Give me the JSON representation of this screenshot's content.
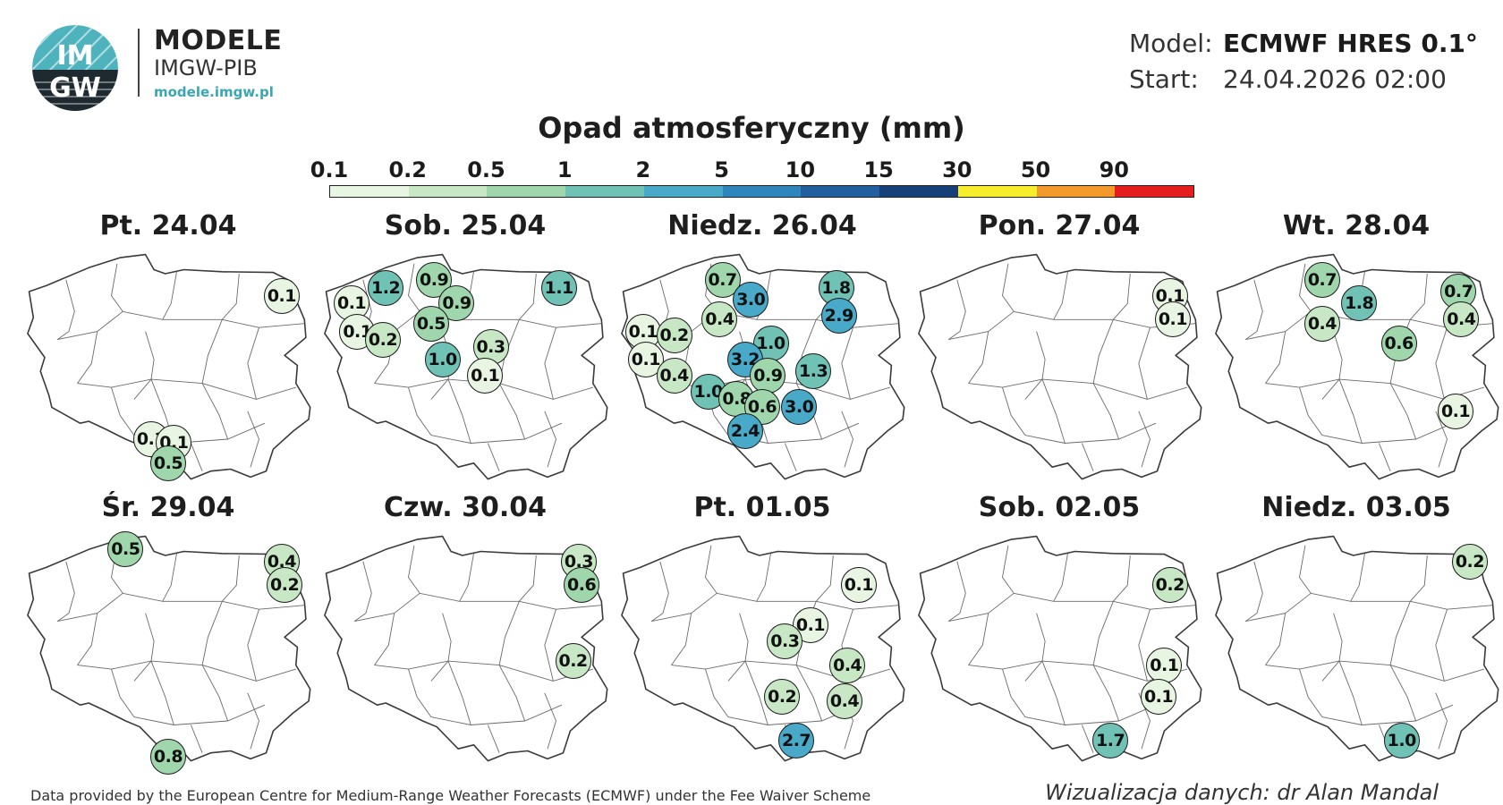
{
  "header": {
    "logo_text_top": "IM",
    "logo_text_bottom": "GW",
    "brand_name": "MODELE",
    "brand_sub": "IMGW-PIB",
    "brand_url": "modele.imgw.pl",
    "model_label": "Model:",
    "model_value": "ECMWF HRES 0.1°",
    "start_label": "Start:",
    "start_value": "24.04.2026 02:00",
    "logo_colors": {
      "teal": "#4fb3bd",
      "dark": "#1f2a30"
    }
  },
  "chart_data": {
    "type": "map",
    "title": "Opad atmosferyczny (mm)",
    "scale_ticks": [
      "0.1",
      "0.2",
      "0.5",
      "1",
      "2",
      "5",
      "10",
      "15",
      "30",
      "50",
      "90"
    ],
    "scale_thresholds": [
      0.1,
      0.2,
      0.5,
      1,
      2,
      5,
      10,
      15,
      30,
      50,
      90
    ],
    "scale_colors": [
      "#e8f5e3",
      "#c7e7c5",
      "#9fd6ac",
      "#70c2b4",
      "#48a9c8",
      "#2f86bd",
      "#215f9e",
      "#17407a",
      "#f6ee2a",
      "#f49a2c",
      "#e41e1e"
    ],
    "panels": [
      {
        "title": "Pt. 24.04",
        "values": [
          {
            "v": 0.1,
            "lon": 23.1,
            "lat": 53.8
          },
          {
            "v": 0.1,
            "lon": 18.5,
            "lat": 50.2
          },
          {
            "v": 0.1,
            "lon": 19.3,
            "lat": 50.1
          },
          {
            "v": 0.5,
            "lon": 19.1,
            "lat": 49.6
          }
        ]
      },
      {
        "title": "Sob. 25.04",
        "values": [
          {
            "v": 1.2,
            "lon": 16.3,
            "lat": 54.0
          },
          {
            "v": 0.9,
            "lon": 18.0,
            "lat": 54.2
          },
          {
            "v": 1.1,
            "lon": 22.4,
            "lat": 54.0
          },
          {
            "v": 0.1,
            "lon": 15.1,
            "lat": 53.6
          },
          {
            "v": 0.9,
            "lon": 18.8,
            "lat": 53.6
          },
          {
            "v": 0.5,
            "lon": 17.9,
            "lat": 53.1
          },
          {
            "v": 0.1,
            "lon": 15.3,
            "lat": 52.9
          },
          {
            "v": 0.2,
            "lon": 16.2,
            "lat": 52.7
          },
          {
            "v": 0.3,
            "lon": 20.0,
            "lat": 52.5
          },
          {
            "v": 1.0,
            "lon": 18.3,
            "lat": 52.2
          },
          {
            "v": 0.1,
            "lon": 19.8,
            "lat": 51.8
          }
        ]
      },
      {
        "title": "Niedz. 26.04",
        "values": [
          {
            "v": 0.7,
            "lon": 17.7,
            "lat": 54.2
          },
          {
            "v": 1.8,
            "lon": 21.7,
            "lat": 54.0
          },
          {
            "v": 3.0,
            "lon": 18.7,
            "lat": 53.7
          },
          {
            "v": 2.9,
            "lon": 21.8,
            "lat": 53.3
          },
          {
            "v": 0.4,
            "lon": 17.6,
            "lat": 53.2
          },
          {
            "v": 0.1,
            "lon": 14.9,
            "lat": 52.9
          },
          {
            "v": 0.2,
            "lon": 16.0,
            "lat": 52.8
          },
          {
            "v": 1.0,
            "lon": 19.4,
            "lat": 52.6
          },
          {
            "v": 3.2,
            "lon": 18.5,
            "lat": 52.2
          },
          {
            "v": 0.1,
            "lon": 15.0,
            "lat": 52.2
          },
          {
            "v": 0.4,
            "lon": 16.0,
            "lat": 51.8
          },
          {
            "v": 0.9,
            "lon": 19.3,
            "lat": 51.8
          },
          {
            "v": 1.3,
            "lon": 20.9,
            "lat": 51.9
          },
          {
            "v": 1.0,
            "lon": 17.2,
            "lat": 51.4
          },
          {
            "v": 0.8,
            "lon": 18.2,
            "lat": 51.2
          },
          {
            "v": 0.6,
            "lon": 19.1,
            "lat": 51.0
          },
          {
            "v": 3.0,
            "lon": 20.4,
            "lat": 51.0
          },
          {
            "v": 2.4,
            "lon": 18.5,
            "lat": 50.4
          }
        ]
      },
      {
        "title": "Pon. 27.04",
        "values": [
          {
            "v": 0.1,
            "lon": 23.0,
            "lat": 53.8
          },
          {
            "v": 0.1,
            "lon": 23.1,
            "lat": 53.2
          }
        ]
      },
      {
        "title": "Wt. 28.04",
        "values": [
          {
            "v": 0.7,
            "lon": 17.9,
            "lat": 54.2
          },
          {
            "v": 0.7,
            "lon": 22.7,
            "lat": 53.9
          },
          {
            "v": 1.8,
            "lon": 19.2,
            "lat": 53.6
          },
          {
            "v": 0.4,
            "lon": 17.9,
            "lat": 53.1
          },
          {
            "v": 0.4,
            "lon": 22.8,
            "lat": 53.2
          },
          {
            "v": 0.6,
            "lon": 20.6,
            "lat": 52.6
          },
          {
            "v": 0.1,
            "lon": 22.6,
            "lat": 50.9
          }
        ]
      },
      {
        "title": "Śr. 29.04",
        "values": [
          {
            "v": 0.5,
            "lon": 17.6,
            "lat": 54.5
          },
          {
            "v": 0.4,
            "lon": 23.1,
            "lat": 54.2
          },
          {
            "v": 0.2,
            "lon": 23.2,
            "lat": 53.6
          },
          {
            "v": 0.8,
            "lon": 19.1,
            "lat": 49.3
          }
        ]
      },
      {
        "title": "Czw. 30.04",
        "values": [
          {
            "v": 0.3,
            "lon": 23.1,
            "lat": 54.2
          },
          {
            "v": 0.6,
            "lon": 23.2,
            "lat": 53.6
          },
          {
            "v": 0.2,
            "lon": 22.9,
            "lat": 51.7
          }
        ]
      },
      {
        "title": "Pt. 01.05",
        "values": [
          {
            "v": 0.1,
            "lon": 22.5,
            "lat": 53.6
          },
          {
            "v": 0.1,
            "lon": 20.8,
            "lat": 52.6
          },
          {
            "v": 0.3,
            "lon": 19.9,
            "lat": 52.2
          },
          {
            "v": 0.4,
            "lon": 22.1,
            "lat": 51.6
          },
          {
            "v": 0.2,
            "lon": 19.8,
            "lat": 50.8
          },
          {
            "v": 0.4,
            "lon": 22.0,
            "lat": 50.7
          },
          {
            "v": 2.7,
            "lon": 20.3,
            "lat": 49.7
          }
        ]
      },
      {
        "title": "Sob. 02.05",
        "values": [
          {
            "v": 0.2,
            "lon": 23.0,
            "lat": 53.6
          },
          {
            "v": 0.1,
            "lon": 22.8,
            "lat": 51.6
          },
          {
            "v": 0.1,
            "lon": 22.6,
            "lat": 50.8
          },
          {
            "v": 1.7,
            "lon": 20.9,
            "lat": 49.7
          }
        ]
      },
      {
        "title": "Niedz. 03.05",
        "values": [
          {
            "v": 0.2,
            "lon": 23.1,
            "lat": 54.2
          },
          {
            "v": 1.0,
            "lon": 20.7,
            "lat": 49.7
          }
        ]
      }
    ]
  },
  "footer": {
    "attribution": "Data provided by the European Centre for Medium-Range Weather Forecasts (ECMWF) under the Fee Waiver Scheme",
    "credit": "Wizualizacja danych: dr Alan Mandal"
  }
}
